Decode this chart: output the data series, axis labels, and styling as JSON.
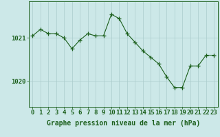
{
  "x": [
    0,
    1,
    2,
    3,
    4,
    5,
    6,
    7,
    8,
    9,
    10,
    11,
    12,
    13,
    14,
    15,
    16,
    17,
    18,
    19,
    20,
    21,
    22,
    23
  ],
  "y": [
    1021.05,
    1021.2,
    1021.1,
    1021.1,
    1021.0,
    1020.75,
    1020.95,
    1021.1,
    1021.05,
    1021.05,
    1021.55,
    1021.45,
    1021.1,
    1020.9,
    1020.7,
    1020.55,
    1020.4,
    1020.1,
    1019.85,
    1019.85,
    1020.35,
    1020.35,
    1020.6,
    1020.6
  ],
  "bg_color": "#cce8e8",
  "line_color": "#1a5e1a",
  "marker_color": "#1a5e1a",
  "grid_color": "#aacccc",
  "axis_color": "#1a5e1a",
  "title": "Graphe pression niveau de la mer (hPa)",
  "yticks": [
    1020,
    1021
  ],
  "ylim": [
    1019.4,
    1021.85
  ],
  "xlim": [
    -0.5,
    23.5
  ],
  "tick_fontsize": 6.5,
  "title_fontsize": 7.0,
  "border_color": "#1a5e1a"
}
